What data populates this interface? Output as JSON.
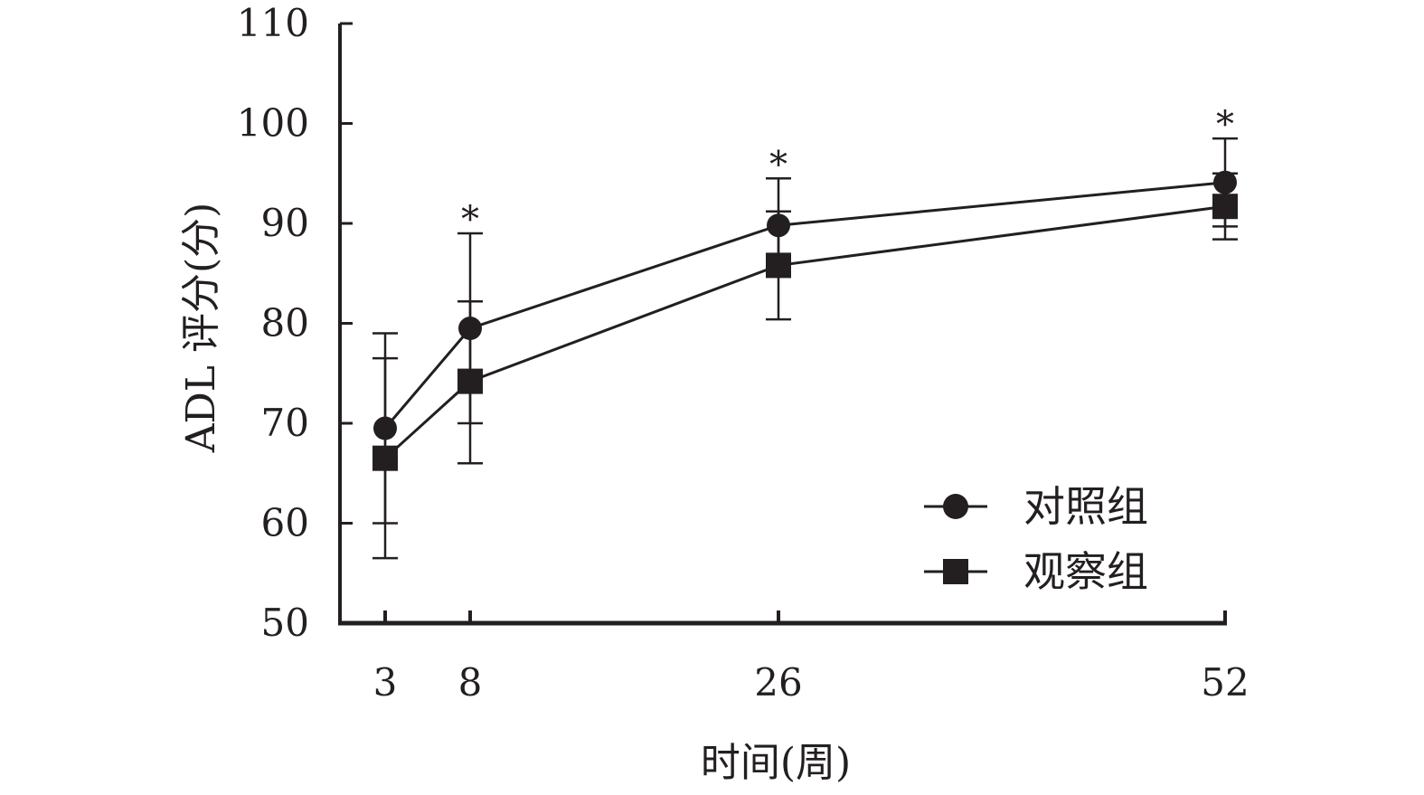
{
  "chart_data": {
    "type": "line",
    "xlabel": "时间(周)",
    "ylabel": "ADL 评分(分)",
    "x": [
      3,
      8,
      26,
      52
    ],
    "x_tick_labels": [
      "3",
      "8",
      "26",
      "52"
    ],
    "y_ticks": [
      50,
      60,
      70,
      80,
      90,
      100,
      110
    ],
    "y_tick_labels": [
      "50",
      "60",
      "70",
      "80",
      "90",
      "100",
      "110"
    ],
    "ylim": [
      50,
      110
    ],
    "grid": false,
    "legend_position": "bottom-right",
    "significance_marker": "*",
    "significance_points": [
      8,
      26,
      52
    ],
    "series": [
      {
        "name": "对照组",
        "marker": "circle",
        "values": [
          69.5,
          79.5,
          89.8,
          94.1
        ],
        "error_upper": [
          79.0,
          89.0,
          94.5,
          98.5
        ],
        "error_lower": [
          60.0,
          70.0,
          85.0,
          89.7
        ]
      },
      {
        "name": "观察组",
        "marker": "square",
        "values": [
          66.5,
          74.2,
          85.8,
          91.7
        ],
        "error_upper": [
          76.5,
          82.2,
          91.2,
          95.0
        ],
        "error_lower": [
          56.5,
          66.0,
          80.4,
          88.4
        ]
      }
    ],
    "colors": {
      "ink": "#231f20"
    }
  }
}
